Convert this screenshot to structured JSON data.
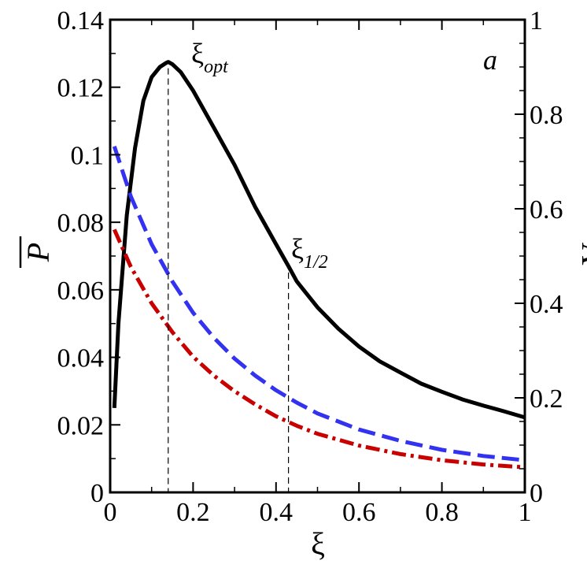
{
  "chart_data": {
    "type": "line",
    "title": "",
    "panel_label": "a",
    "xlabel": "ξ",
    "ylabel_left": "P",
    "ylabel_right": "A",
    "xlim": [
      0,
      1
    ],
    "ylim_left": [
      0,
      0.14
    ],
    "ylim_right": [
      0,
      1
    ],
    "x_ticks": [
      0,
      0.2,
      0.4,
      0.6,
      0.8,
      1
    ],
    "x_tick_labels": [
      "0",
      "0.2",
      "0.4",
      "0.6",
      "0.8",
      "1"
    ],
    "y_left_ticks": [
      0,
      0.02,
      0.04,
      0.06,
      0.08,
      0.1,
      0.12,
      0.14
    ],
    "y_left_tick_labels": [
      "0",
      "0.02",
      "0.04",
      "0.06",
      "0.08",
      "0.1",
      "0.12",
      "0.14"
    ],
    "y_right_ticks": [
      0,
      0.2,
      0.4,
      0.6,
      0.8,
      1
    ],
    "y_right_tick_labels": [
      "0",
      "0.2",
      "0.4",
      "0.6",
      "0.8",
      "1"
    ],
    "grid": false,
    "series": [
      {
        "axis": "left",
        "color": "#000000",
        "style": "solid",
        "x": [
          0.01,
          0.02,
          0.04,
          0.06,
          0.08,
          0.1,
          0.12,
          0.135,
          0.14,
          0.15,
          0.17,
          0.2,
          0.25,
          0.3,
          0.35,
          0.4,
          0.43,
          0.45,
          0.5,
          0.55,
          0.6,
          0.65,
          0.7,
          0.75,
          0.8,
          0.85,
          0.9,
          0.95,
          1.0
        ],
        "y": [
          0.025,
          0.05,
          0.082,
          0.102,
          0.116,
          0.123,
          0.126,
          0.1272,
          0.1275,
          0.1268,
          0.1245,
          0.119,
          0.108,
          0.097,
          0.0845,
          0.0735,
          0.067,
          0.0625,
          0.0548,
          0.0485,
          0.0432,
          0.0388,
          0.0355,
          0.0322,
          0.0298,
          0.0275,
          0.0257,
          0.024,
          0.0222
        ]
      },
      {
        "axis": "right",
        "color": "#3232f0",
        "style": "dashed",
        "x": [
          0.01,
          0.05,
          0.1,
          0.15,
          0.2,
          0.25,
          0.3,
          0.35,
          0.4,
          0.45,
          0.5,
          0.6,
          0.7,
          0.8,
          0.9,
          1.0
        ],
        "y": [
          0.732,
          0.626,
          0.525,
          0.446,
          0.38,
          0.327,
          0.283,
          0.247,
          0.216,
          0.19,
          0.167,
          0.133,
          0.109,
          0.09,
          0.077,
          0.068
        ]
      },
      {
        "axis": "right",
        "color": "#c80000",
        "style": "dashdot",
        "x": [
          0.01,
          0.05,
          0.1,
          0.15,
          0.2,
          0.25,
          0.3,
          0.35,
          0.4,
          0.45,
          0.5,
          0.6,
          0.7,
          0.8,
          0.9,
          1.0
        ],
        "y": [
          0.556,
          0.477,
          0.4,
          0.339,
          0.287,
          0.247,
          0.214,
          0.186,
          0.161,
          0.141,
          0.124,
          0.099,
          0.081,
          0.068,
          0.059,
          0.053
        ]
      }
    ],
    "annotations": [
      {
        "id": "opt",
        "base": "ξ",
        "sub": "opt",
        "x": 0.14
      },
      {
        "id": "half",
        "base": "ξ",
        "sub": "1/2",
        "x": 0.43
      }
    ]
  }
}
